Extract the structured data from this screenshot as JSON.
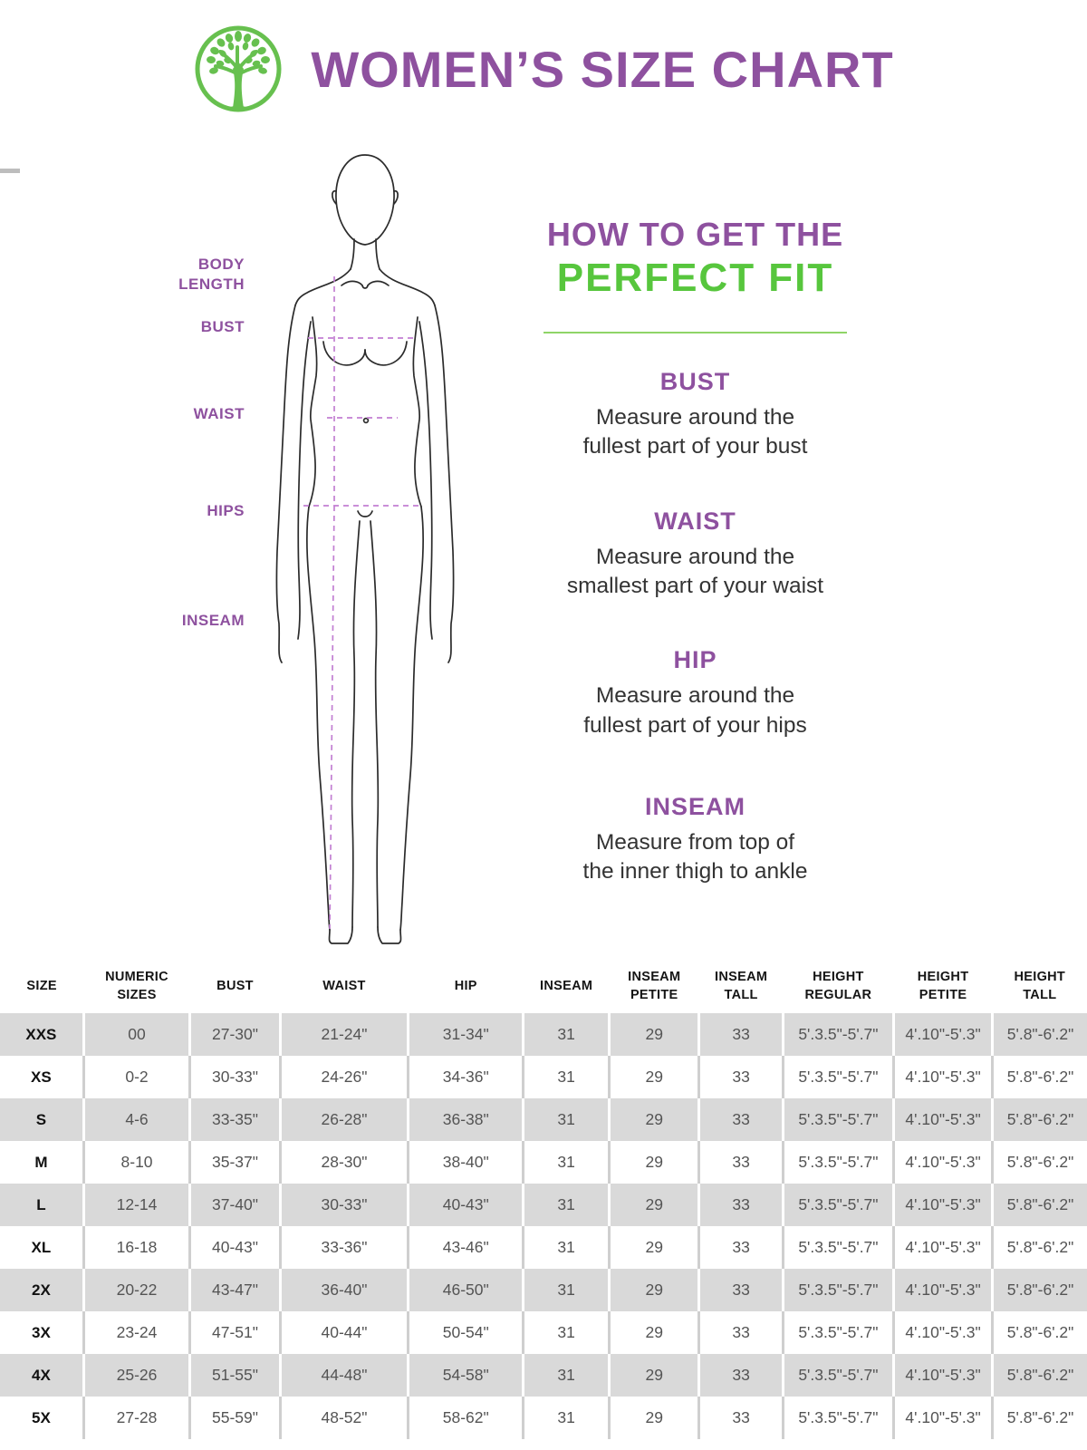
{
  "header": {
    "title": "WOMEN’S SIZE CHART"
  },
  "figure": {
    "labels": {
      "body_length": "BODY LENGTH",
      "bust": "BUST",
      "waist": "WAIST",
      "hips": "HIPS",
      "inseam": "INSEAM"
    }
  },
  "howto": {
    "title_line1": "HOW TO GET THE",
    "title_line2": "PERFECT FIT",
    "sections": [
      {
        "heading": "BUST",
        "line1": "Measure around the",
        "line2": "fullest part of your bust"
      },
      {
        "heading": "WAIST",
        "line1": "Measure around the",
        "line2": "smallest part of your waist"
      },
      {
        "heading": "HIP",
        "line1": "Measure around the",
        "line2": "fullest part of your hips"
      },
      {
        "heading": "INSEAM",
        "line1": "Measure from top of",
        "line2": "the inner thigh to ankle"
      }
    ]
  },
  "table": {
    "headers": [
      "SIZE",
      "NUMERIC SIZES",
      "BUST",
      "WAIST",
      "HIP",
      "INSEAM",
      "INSEAM PETITE",
      "INSEAM TALL",
      "HEIGHT REGULAR",
      "HEIGHT PETITE",
      "HEIGHT TALL"
    ],
    "rows": [
      [
        "XXS",
        "00",
        "27-30\"",
        "21-24\"",
        "31-34\"",
        "31",
        "29",
        "33",
        "5'.3.5\"-5'.7\"",
        "4'.10\"-5'.3\"",
        "5'.8\"-6'.2\""
      ],
      [
        "XS",
        "0-2",
        "30-33\"",
        "24-26\"",
        "34-36\"",
        "31",
        "29",
        "33",
        "5'.3.5\"-5'.7\"",
        "4'.10\"-5'.3\"",
        "5'.8\"-6'.2\""
      ],
      [
        "S",
        "4-6",
        "33-35\"",
        "26-28\"",
        "36-38\"",
        "31",
        "29",
        "33",
        "5'.3.5\"-5'.7\"",
        "4'.10\"-5'.3\"",
        "5'.8\"-6'.2\""
      ],
      [
        "M",
        "8-10",
        "35-37\"",
        "28-30\"",
        "38-40\"",
        "31",
        "29",
        "33",
        "5'.3.5\"-5'.7\"",
        "4'.10\"-5'.3\"",
        "5'.8\"-6'.2\""
      ],
      [
        "L",
        "12-14",
        "37-40\"",
        "30-33\"",
        "40-43\"",
        "31",
        "29",
        "33",
        "5'.3.5\"-5'.7\"",
        "4'.10\"-5'.3\"",
        "5'.8\"-6'.2\""
      ],
      [
        "XL",
        "16-18",
        "40-43\"",
        "33-36\"",
        "43-46\"",
        "31",
        "29",
        "33",
        "5'.3.5\"-5'.7\"",
        "4'.10\"-5'.3\"",
        "5'.8\"-6'.2\""
      ],
      [
        "2X",
        "20-22",
        "43-47\"",
        "36-40\"",
        "46-50\"",
        "31",
        "29",
        "33",
        "5'.3.5\"-5'.7\"",
        "4'.10\"-5'.3\"",
        "5'.8\"-6'.2\""
      ],
      [
        "3X",
        "23-24",
        "47-51\"",
        "40-44\"",
        "50-54\"",
        "31",
        "29",
        "33",
        "5'.3.5\"-5'.7\"",
        "4'.10\"-5'.3\"",
        "5'.8\"-6'.2\""
      ],
      [
        "4X",
        "25-26",
        "51-55\"",
        "44-48\"",
        "54-58\"",
        "31",
        "29",
        "33",
        "5'.3.5\"-5'.7\"",
        "4'.10\"-5'.3\"",
        "5'.8\"-6'.2\""
      ],
      [
        "5X",
        "27-28",
        "55-59\"",
        "48-52\"",
        "58-62\"",
        "31",
        "29",
        "33",
        "5'.3.5\"-5'.7\"",
        "4'.10\"-5'.3\"",
        "5'.8\"-6'.2\""
      ]
    ]
  },
  "colors": {
    "purple": "#8e519f",
    "green": "#57c63d",
    "logo_green": "#67c04f",
    "dash_purple": "#c27fd2",
    "row_gray": "#d9d9d9"
  }
}
